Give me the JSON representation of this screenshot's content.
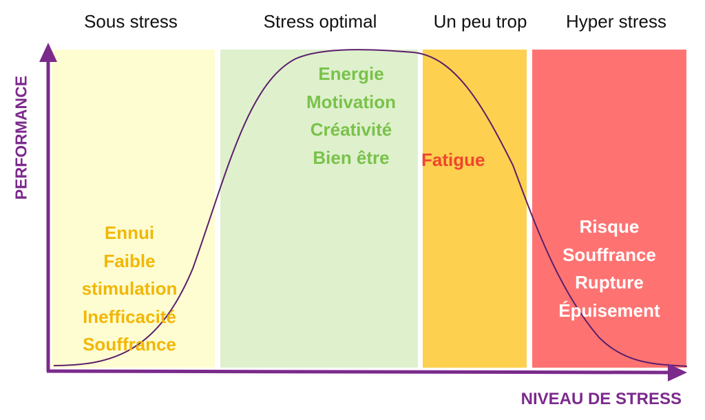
{
  "zones": [
    {
      "id": "sous",
      "title": "Sous stress",
      "band_color": "#fefdd2",
      "text_color": "#f2b705",
      "words": [
        "Ennui",
        "Faible",
        "stimulation",
        "Inefficacité",
        "Souffrance"
      ]
    },
    {
      "id": "optimal",
      "title": "Stress optimal",
      "band_color": "#dff0cd",
      "text_color": "#79c24a",
      "words": [
        "Energie",
        "Motivation",
        "Créativité",
        "Bien être"
      ]
    },
    {
      "id": "trop",
      "title": "Un peu trop",
      "band_color": "#fdd04f",
      "text_color": "#f0452d",
      "words": [
        "Fatigue"
      ]
    },
    {
      "id": "hyper",
      "title": "Hyper stress",
      "band_color": "#fe7372",
      "text_color": "#ffffff",
      "words": [
        "Risque",
        "Souffrance",
        "Rupture",
        "Épuisement"
      ]
    }
  ],
  "axes": {
    "y_label": "PERFORMANCE",
    "x_label": "NIVEAU DE STRESS",
    "color": "#7b2a8c"
  },
  "curve": {
    "color": "#5b1e6b"
  }
}
